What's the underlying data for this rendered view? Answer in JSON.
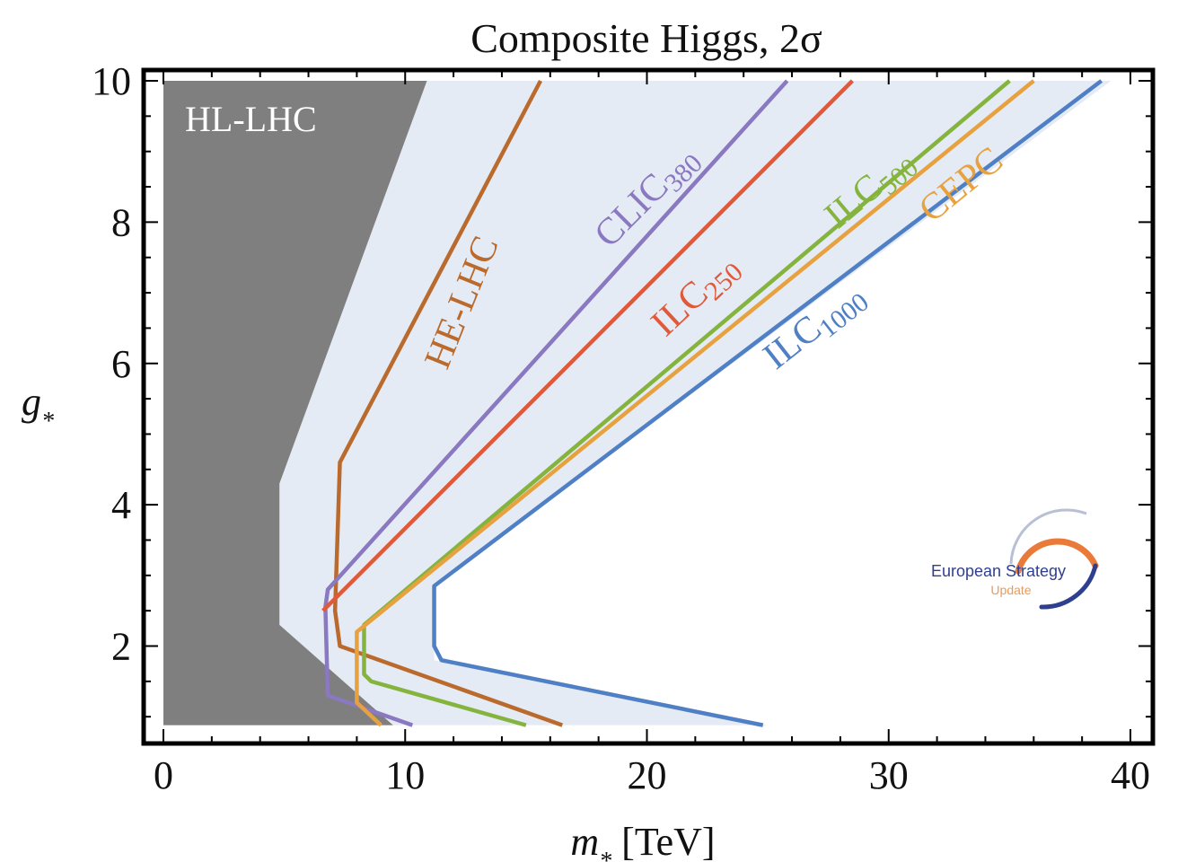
{
  "chart_data": {
    "type": "line",
    "title": "Composite Higgs, 2σ",
    "xlabel": {
      "var": "m",
      "sub": "*",
      "unit": " [TeV]"
    },
    "ylabel": {
      "var": "g",
      "sub": "*"
    },
    "xlim": [
      0,
      40
    ],
    "ylim": [
      0.85,
      10
    ],
    "xticks": [
      0,
      10,
      20,
      30,
      40
    ],
    "yticks": [
      2,
      4,
      6,
      8,
      10
    ],
    "grid": false,
    "regions": [
      {
        "name": "HL-LHC",
        "label": "HL-LHC",
        "color": "#7f7f7f",
        "x": [
          0,
          0,
          10.9,
          4.8,
          4.8,
          9.5
        ],
        "y": [
          0.88,
          10,
          10,
          4.3,
          2.3,
          0.88
        ]
      },
      {
        "name": "combined-light",
        "label": "",
        "color": "#e5ebf5",
        "x": [
          0,
          0,
          39.2,
          11.2,
          11.2,
          25.0
        ],
        "y": [
          0.88,
          10,
          10,
          2.85,
          1.8,
          0.88
        ]
      }
    ],
    "series": [
      {
        "name": "HE-LHC",
        "label": "HE-LHC",
        "color": "#b96a2c",
        "x": [
          15.6,
          7.3,
          7.1,
          7.3,
          16.5
        ],
        "y": [
          10,
          4.6,
          2.5,
          2.0,
          0.88
        ],
        "label_pos": [
          12.8,
          6.8
        ],
        "label_angle": -68
      },
      {
        "name": "CLIC380",
        "label": "CLIC",
        "sub": "380",
        "color": "#8a78c0",
        "x": [
          25.8,
          6.8,
          6.7,
          6.8,
          10.3
        ],
        "y": [
          10,
          2.8,
          2.55,
          1.3,
          0.88
        ],
        "label_pos": [
          20.3,
          8.25
        ],
        "label_angle": -45
      },
      {
        "name": "ILC250",
        "label": "ILC",
        "sub": "250",
        "color": "#e05a3a",
        "x": [
          28.5,
          6.6
        ],
        "y": [
          10,
          2.5
        ],
        "label_pos": [
          22.3,
          6.85
        ],
        "label_angle": -43
      },
      {
        "name": "ILC500",
        "label": "ILC",
        "sub": "500",
        "color": "#85b43e",
        "x": [
          35.0,
          8.3,
          8.3,
          8.6,
          15.0
        ],
        "y": [
          10,
          2.3,
          1.6,
          1.5,
          0.88
        ],
        "label_pos": [
          29.5,
          8.35
        ],
        "label_angle": -40
      },
      {
        "name": "CEPC",
        "label": "CEPC",
        "sub": "",
        "color": "#e7a23f",
        "x": [
          36.0,
          8.0,
          8.0,
          9.0
        ],
        "y": [
          10,
          2.2,
          1.2,
          0.88
        ],
        "label_pos": [
          33.3,
          8.4
        ],
        "label_angle": -39
      },
      {
        "name": "ILC1000",
        "label": "ILC",
        "sub": "1000",
        "color": "#4f7fc4",
        "x": [
          38.8,
          11.2,
          11.2,
          11.5,
          24.8
        ],
        "y": [
          10,
          2.85,
          2.0,
          1.8,
          0.88
        ],
        "label_pos": [
          27.2,
          6.4
        ],
        "label_angle": -38
      }
    ]
  },
  "logo": {
    "line1": "European Strategy",
    "line2": "Update"
  }
}
